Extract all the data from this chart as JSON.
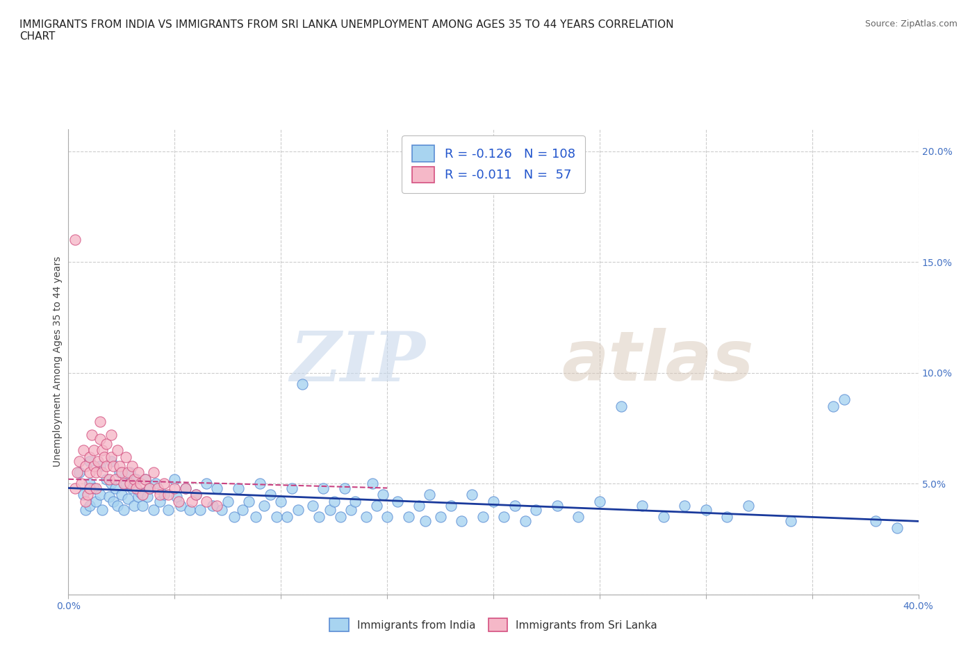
{
  "title": "IMMIGRANTS FROM INDIA VS IMMIGRANTS FROM SRI LANKA UNEMPLOYMENT AMONG AGES 35 TO 44 YEARS CORRELATION\nCHART",
  "source_text": "Source: ZipAtlas.com",
  "ylabel": "Unemployment Among Ages 35 to 44 years",
  "xlim": [
    0.0,
    0.4
  ],
  "ylim": [
    0.0,
    0.21
  ],
  "x_ticks": [
    0.0,
    0.05,
    0.1,
    0.15,
    0.2,
    0.25,
    0.3,
    0.35,
    0.4
  ],
  "y_ticks": [
    0.0,
    0.05,
    0.1,
    0.15,
    0.2
  ],
  "india_color": "#a8d4f0",
  "srilanka_color": "#f5b8c8",
  "india_edge_color": "#5b8dd4",
  "srilanka_edge_color": "#d45080",
  "india_line_color": "#1a3a9c",
  "srilanka_line_color": "#c84080",
  "watermark_zip": "ZIP",
  "watermark_atlas": "atlas",
  "grid_color": "#cccccc",
  "india_scatter_x": [
    0.005,
    0.007,
    0.008,
    0.01,
    0.01,
    0.01,
    0.012,
    0.013,
    0.015,
    0.015,
    0.016,
    0.018,
    0.019,
    0.02,
    0.02,
    0.021,
    0.022,
    0.023,
    0.024,
    0.025,
    0.026,
    0.027,
    0.028,
    0.029,
    0.03,
    0.031,
    0.032,
    0.033,
    0.034,
    0.035,
    0.036,
    0.037,
    0.038,
    0.04,
    0.041,
    0.043,
    0.045,
    0.047,
    0.05,
    0.051,
    0.053,
    0.055,
    0.057,
    0.06,
    0.062,
    0.065,
    0.068,
    0.07,
    0.072,
    0.075,
    0.078,
    0.08,
    0.082,
    0.085,
    0.088,
    0.09,
    0.092,
    0.095,
    0.098,
    0.1,
    0.103,
    0.105,
    0.108,
    0.11,
    0.115,
    0.118,
    0.12,
    0.123,
    0.125,
    0.128,
    0.13,
    0.133,
    0.135,
    0.14,
    0.143,
    0.145,
    0.148,
    0.15,
    0.155,
    0.16,
    0.165,
    0.168,
    0.17,
    0.175,
    0.18,
    0.185,
    0.19,
    0.195,
    0.2,
    0.205,
    0.21,
    0.215,
    0.22,
    0.23,
    0.24,
    0.25,
    0.26,
    0.27,
    0.28,
    0.29,
    0.3,
    0.31,
    0.32,
    0.34,
    0.36,
    0.365,
    0.38,
    0.39
  ],
  "india_scatter_y": [
    0.055,
    0.045,
    0.038,
    0.06,
    0.05,
    0.04,
    0.048,
    0.042,
    0.058,
    0.045,
    0.038,
    0.052,
    0.044,
    0.06,
    0.05,
    0.042,
    0.048,
    0.04,
    0.055,
    0.045,
    0.038,
    0.05,
    0.043,
    0.055,
    0.048,
    0.04,
    0.052,
    0.044,
    0.046,
    0.04,
    0.052,
    0.044,
    0.048,
    0.038,
    0.05,
    0.042,
    0.045,
    0.038,
    0.052,
    0.044,
    0.04,
    0.048,
    0.038,
    0.045,
    0.038,
    0.05,
    0.04,
    0.048,
    0.038,
    0.042,
    0.035,
    0.048,
    0.038,
    0.042,
    0.035,
    0.05,
    0.04,
    0.045,
    0.035,
    0.042,
    0.035,
    0.048,
    0.038,
    0.095,
    0.04,
    0.035,
    0.048,
    0.038,
    0.042,
    0.035,
    0.048,
    0.038,
    0.042,
    0.035,
    0.05,
    0.04,
    0.045,
    0.035,
    0.042,
    0.035,
    0.04,
    0.033,
    0.045,
    0.035,
    0.04,
    0.033,
    0.045,
    0.035,
    0.042,
    0.035,
    0.04,
    0.033,
    0.038,
    0.04,
    0.035,
    0.042,
    0.085,
    0.04,
    0.035,
    0.04,
    0.038,
    0.035,
    0.04,
    0.033,
    0.085,
    0.088,
    0.033,
    0.03
  ],
  "srilanka_scatter_x": [
    0.003,
    0.004,
    0.005,
    0.006,
    0.007,
    0.008,
    0.008,
    0.009,
    0.01,
    0.01,
    0.01,
    0.011,
    0.012,
    0.012,
    0.013,
    0.013,
    0.014,
    0.015,
    0.015,
    0.016,
    0.016,
    0.017,
    0.018,
    0.018,
    0.019,
    0.02,
    0.02,
    0.021,
    0.022,
    0.023,
    0.024,
    0.025,
    0.026,
    0.027,
    0.028,
    0.029,
    0.03,
    0.031,
    0.032,
    0.033,
    0.034,
    0.035,
    0.036,
    0.038,
    0.04,
    0.042,
    0.043,
    0.045,
    0.047,
    0.05,
    0.052,
    0.055,
    0.058,
    0.06,
    0.065,
    0.07,
    0.003
  ],
  "srilanka_scatter_y": [
    0.048,
    0.055,
    0.06,
    0.05,
    0.065,
    0.042,
    0.058,
    0.045,
    0.062,
    0.055,
    0.048,
    0.072,
    0.065,
    0.058,
    0.055,
    0.048,
    0.06,
    0.078,
    0.07,
    0.065,
    0.055,
    0.062,
    0.068,
    0.058,
    0.052,
    0.072,
    0.062,
    0.058,
    0.052,
    0.065,
    0.058,
    0.055,
    0.05,
    0.062,
    0.055,
    0.05,
    0.058,
    0.052,
    0.048,
    0.055,
    0.05,
    0.045,
    0.052,
    0.048,
    0.055,
    0.048,
    0.045,
    0.05,
    0.045,
    0.048,
    0.042,
    0.048,
    0.042,
    0.045,
    0.042,
    0.04,
    0.16
  ],
  "india_line_x": [
    0.0,
    0.4
  ],
  "india_line_y": [
    0.048,
    0.033
  ],
  "srilanka_line_x": [
    0.0,
    0.15
  ],
  "srilanka_line_y": [
    0.052,
    0.048
  ]
}
